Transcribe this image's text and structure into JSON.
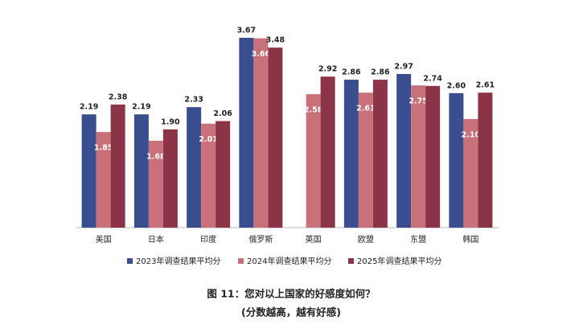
{
  "chart_data": {
    "type": "bar",
    "title": "图 11：您对以上国家的好感度如何？",
    "subtitle": "(分数越高，越有好感)",
    "categories": [
      "美国",
      "日本",
      "印度",
      "俄罗斯",
      "英国",
      "欧盟",
      "东盟",
      "韩国"
    ],
    "series": [
      {
        "name": "2023年调查结果平均分",
        "color": "#3a4e8f",
        "values": [
          2.19,
          2.19,
          2.33,
          3.67,
          null,
          2.86,
          2.97,
          2.6
        ],
        "value_labels": [
          "2.19",
          "2.19",
          "2.33",
          "3.67",
          null,
          "2.86",
          "2.97",
          "2.60"
        ]
      },
      {
        "name": "2024年调查结果平均分",
        "color": "#c9717b",
        "values": [
          1.85,
          1.68,
          2.01,
          3.66,
          2.58,
          2.61,
          2.75,
          2.1
        ],
        "value_labels": [
          "1.85",
          "1.68",
          "2.01",
          "3.66",
          "2.58",
          "2.61",
          "2.75",
          "2.10"
        ]
      },
      {
        "name": "2025年调查结果平均分",
        "color": "#8b3447",
        "values": [
          2.38,
          1.9,
          2.06,
          3.48,
          2.92,
          2.86,
          2.74,
          2.61
        ],
        "value_labels": [
          "2.38",
          "1.90",
          "2.06",
          "3.48",
          "2.92",
          "2.86",
          "2.74",
          "2.61"
        ]
      }
    ]
  }
}
